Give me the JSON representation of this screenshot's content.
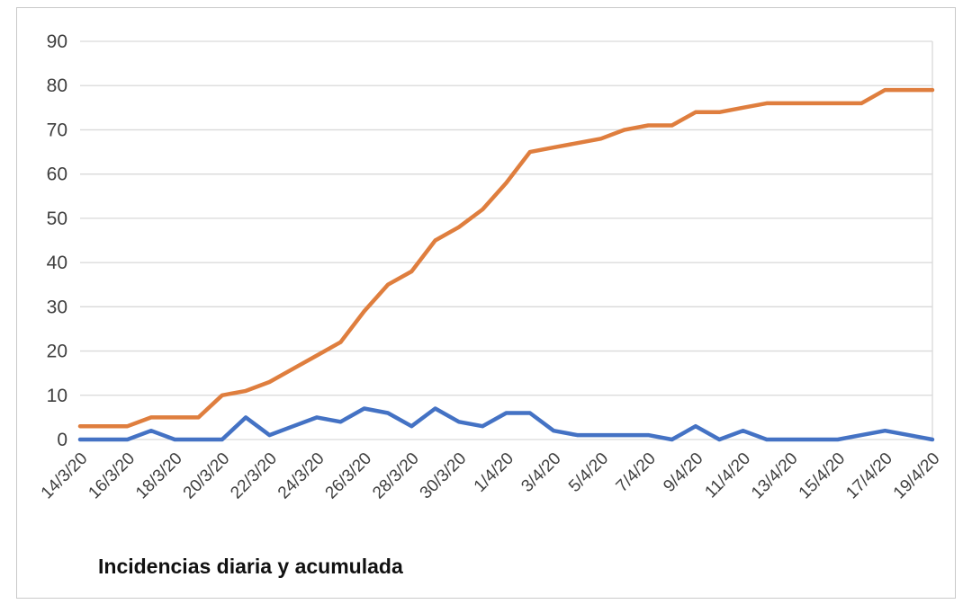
{
  "chart": {
    "title": "Incidencias diaria y acumulada"
  },
  "chart_data": {
    "type": "line",
    "title": "Incidencias diaria y acumulada",
    "xlabel": "",
    "ylabel": "",
    "ylim": [
      0,
      90
    ],
    "y_ticks": [
      0,
      10,
      20,
      30,
      40,
      50,
      60,
      70,
      80,
      90
    ],
    "grid": true,
    "legend": "none",
    "grid_color": "#d9d9d9",
    "x": [
      "14/3/20",
      "15/3/20",
      "16/3/20",
      "17/3/20",
      "18/3/20",
      "19/3/20",
      "20/3/20",
      "21/3/20",
      "22/3/20",
      "23/3/20",
      "24/3/20",
      "25/3/20",
      "26/3/20",
      "27/3/20",
      "28/3/20",
      "29/3/20",
      "30/3/20",
      "31/3/20",
      "1/4/20",
      "2/4/20",
      "3/4/20",
      "4/4/20",
      "5/4/20",
      "6/4/20",
      "7/4/20",
      "8/4/20",
      "9/4/20",
      "10/4/20",
      "11/4/20",
      "12/4/20",
      "13/4/20",
      "14/4/20",
      "15/4/20",
      "16/4/20",
      "17/4/20",
      "18/4/20",
      "19/4/20"
    ],
    "x_tick_labels": [
      "14/3/20",
      "16/3/20",
      "18/3/20",
      "20/3/20",
      "22/3/20",
      "24/3/20",
      "26/3/20",
      "28/3/20",
      "30/3/20",
      "1/4/20",
      "3/4/20",
      "5/4/20",
      "7/4/20",
      "9/4/20",
      "11/4/20",
      "13/4/20",
      "15/4/20",
      "17/4/20",
      "19/4/20"
    ],
    "x_tick_every": 2,
    "series": [
      {
        "name": "acumulada",
        "color": "#df7e3e",
        "values": [
          3,
          3,
          3,
          5,
          5,
          5,
          10,
          11,
          13,
          16,
          19,
          22,
          29,
          35,
          38,
          45,
          48,
          52,
          58,
          65,
          66,
          67,
          68,
          70,
          71,
          71,
          74,
          74,
          75,
          76,
          76,
          76,
          76,
          76,
          79,
          79,
          79
        ]
      },
      {
        "name": "diaria",
        "color": "#4472c4",
        "values": [
          0,
          0,
          0,
          2,
          0,
          0,
          0,
          5,
          1,
          3,
          5,
          4,
          7,
          6,
          3,
          7,
          4,
          3,
          6,
          6,
          2,
          1,
          1,
          1,
          1,
          0,
          3,
          0,
          2,
          0,
          0,
          0,
          0,
          1,
          2,
          1,
          0
        ]
      }
    ]
  }
}
